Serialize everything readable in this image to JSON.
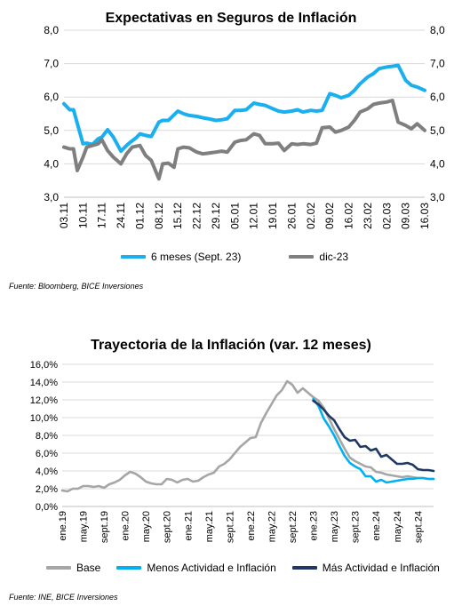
{
  "chart_data": [
    {
      "type": "line",
      "title": "Expectativas en Seguros de Inflación",
      "ylim": [
        3.0,
        8.0
      ],
      "yticks": [
        "3,0",
        "4,0",
        "5,0",
        "6,0",
        "7,0",
        "8,0"
      ],
      "xticks": [
        "03.11",
        "10.11",
        "17.11",
        "24.11",
        "01.12",
        "08.12",
        "15.12",
        "22.12",
        "29.12",
        "05.01",
        "12.01",
        "19.01",
        "26.01",
        "02.02",
        "09.02",
        "16.02",
        "23.02",
        "02.03",
        "09.03",
        "16.03"
      ],
      "secondary_y_axis": true,
      "grid": true,
      "legend_position": "bottom",
      "series": [
        {
          "name": "6 meses (Sept. 23)",
          "color": "#1ab0ef",
          "x": [
            0,
            0.3,
            0.5,
            1.0,
            1.2,
            1.5,
            1.8,
            2.0,
            2.3,
            2.6,
            3.0,
            3.3,
            3.5,
            3.8,
            4.0,
            4.3,
            4.6,
            5.0,
            5.2,
            5.5,
            6.0,
            6.3,
            6.6,
            7.0,
            7.3,
            7.6,
            8.0,
            8.3,
            8.6,
            9.0,
            9.3,
            9.6,
            10.0,
            10.3,
            10.6,
            11.0,
            11.3,
            11.6,
            12.0,
            12.3,
            12.6,
            13.0,
            13.3,
            13.6,
            14.0,
            14.3,
            14.6,
            15.0,
            15.3,
            15.6,
            16.0,
            16.3,
            16.6,
            17.0,
            17.3,
            17.6,
            18.0,
            18.3,
            18.6,
            19.0
          ],
          "y": [
            5.8,
            5.62,
            5.62,
            4.6,
            4.62,
            4.58,
            4.75,
            4.8,
            5.02,
            4.8,
            4.38,
            4.55,
            4.65,
            4.78,
            4.9,
            4.85,
            4.82,
            5.25,
            5.3,
            5.3,
            5.58,
            5.5,
            5.45,
            5.42,
            5.38,
            5.35,
            5.3,
            5.32,
            5.35,
            5.6,
            5.6,
            5.62,
            5.82,
            5.78,
            5.75,
            5.65,
            5.58,
            5.55,
            5.58,
            5.62,
            5.55,
            5.6,
            5.58,
            5.6,
            6.1,
            6.05,
            5.98,
            6.05,
            6.2,
            6.4,
            6.6,
            6.7,
            6.85,
            6.9,
            6.92,
            6.95,
            6.5,
            6.35,
            6.3,
            6.2
          ]
        },
        {
          "name": "dic-23",
          "color": "#7f7f7f",
          "x": [
            0,
            0.3,
            0.5,
            0.7,
            1.0,
            1.2,
            1.5,
            1.8,
            2.0,
            2.3,
            2.6,
            3.0,
            3.3,
            3.6,
            4.0,
            4.3,
            4.6,
            5.0,
            5.2,
            5.5,
            5.8,
            6.0,
            6.3,
            6.6,
            7.0,
            7.3,
            7.6,
            8.0,
            8.3,
            8.6,
            9.0,
            9.3,
            9.6,
            10.0,
            10.3,
            10.6,
            11.0,
            11.3,
            11.6,
            12.0,
            12.3,
            12.6,
            13.0,
            13.3,
            13.6,
            14.0,
            14.3,
            14.6,
            15.0,
            15.3,
            15.6,
            16.0,
            16.3,
            16.6,
            17.0,
            17.3,
            17.6,
            18.0,
            18.3,
            18.6,
            19.0
          ],
          "y": [
            4.5,
            4.45,
            4.45,
            3.8,
            4.2,
            4.5,
            4.55,
            4.6,
            4.72,
            4.4,
            4.2,
            4.0,
            4.3,
            4.5,
            4.55,
            4.25,
            4.1,
            3.55,
            4.0,
            4.02,
            3.9,
            4.45,
            4.5,
            4.48,
            4.35,
            4.3,
            4.32,
            4.35,
            4.38,
            4.35,
            4.65,
            4.7,
            4.72,
            4.9,
            4.85,
            4.6,
            4.6,
            4.62,
            4.4,
            4.6,
            4.58,
            4.6,
            4.58,
            4.62,
            5.08,
            5.1,
            4.95,
            5.0,
            5.1,
            5.3,
            5.55,
            5.65,
            5.78,
            5.82,
            5.85,
            5.9,
            5.25,
            5.15,
            5.05,
            5.2,
            5.0
          ]
        }
      ]
    },
    {
      "type": "line",
      "title": "Trayectoria de la Inflación (var. 12 meses)",
      "ylim": [
        0,
        16
      ],
      "yticks": [
        "0,0%",
        "2,0%",
        "4,0%",
        "6,0%",
        "8,0%",
        "10,0%",
        "12,0%",
        "14,0%",
        "16,0%"
      ],
      "xticks": [
        "ene.19",
        "may.19",
        "sept.19",
        "ene.20",
        "may.20",
        "sept.20",
        "ene.21",
        "may.21",
        "sept.21",
        "ene.22",
        "may.22",
        "sept.22",
        "ene.23",
        "may.23",
        "sept.23",
        "ene.24",
        "may.24",
        "sept.24"
      ],
      "grid": true,
      "legend_position": "bottom",
      "series": [
        {
          "name": "Base",
          "color": "#a6a6a6",
          "x": [
            0,
            1,
            2,
            3,
            4,
            5,
            6,
            7,
            8,
            9,
            10,
            11,
            12,
            13,
            14,
            15,
            16,
            17,
            18,
            19,
            20,
            21,
            22,
            23,
            24,
            25,
            26,
            27,
            28,
            29,
            30,
            31,
            32,
            33,
            34,
            35,
            36,
            37,
            38,
            39,
            40,
            41,
            42,
            43,
            44,
            45,
            46,
            47,
            48,
            49,
            50,
            51,
            52,
            53,
            54,
            55,
            56,
            57,
            58,
            59,
            60,
            61,
            62,
            63,
            64,
            65,
            66,
            67,
            68,
            69,
            70,
            71
          ],
          "y": [
            1.8,
            1.7,
            2.0,
            2.0,
            2.3,
            2.3,
            2.2,
            2.3,
            2.1,
            2.5,
            2.7,
            3.0,
            3.5,
            3.9,
            3.7,
            3.3,
            2.8,
            2.6,
            2.5,
            2.5,
            3.1,
            3.0,
            2.7,
            3.0,
            3.1,
            2.8,
            2.9,
            3.3,
            3.6,
            3.8,
            4.5,
            4.8,
            5.3,
            6.0,
            6.7,
            7.2,
            7.7,
            7.8,
            9.4,
            10.5,
            11.5,
            12.5,
            13.1,
            14.1,
            13.7,
            12.8,
            13.3,
            12.8,
            12.3,
            11.9,
            11.1,
            9.9,
            8.7,
            7.6,
            6.5,
            5.5,
            5.1,
            4.8,
            4.5,
            4.4,
            3.9,
            3.8,
            3.6,
            3.5,
            3.4,
            3.3,
            3.4,
            3.3,
            3.2,
            3.2,
            3.1,
            3.1
          ]
        },
        {
          "name": "Menos Actividad e Inflación",
          "color": "#00b0f0",
          "x": [
            48,
            49,
            50,
            51,
            52,
            53,
            54,
            55,
            56,
            57,
            58,
            59,
            60,
            61,
            62,
            63,
            64,
            65,
            66,
            67,
            68,
            69,
            70,
            71
          ],
          "y": [
            12.1,
            11.3,
            9.9,
            9.0,
            8.0,
            6.8,
            5.7,
            4.9,
            4.5,
            4.2,
            3.4,
            3.4,
            2.8,
            3.0,
            2.7,
            2.8,
            2.9,
            3.0,
            3.1,
            3.1,
            3.2,
            3.2,
            3.1,
            3.1
          ]
        },
        {
          "name": "Más Actividad e Inflación",
          "color": "#1f3864",
          "x": [
            48,
            49,
            50,
            51,
            52,
            53,
            54,
            55,
            56,
            57,
            58,
            59,
            60,
            61,
            62,
            63,
            64,
            65,
            66,
            67,
            68,
            69,
            70,
            71
          ],
          "y": [
            11.9,
            11.5,
            10.9,
            10.2,
            9.7,
            8.7,
            7.8,
            7.4,
            7.5,
            6.7,
            6.8,
            6.3,
            6.5,
            5.6,
            5.8,
            5.3,
            4.8,
            4.8,
            4.9,
            4.7,
            4.2,
            4.1,
            4.1,
            4.0
          ]
        }
      ]
    }
  ],
  "chart1": {
    "title": "Expectativas en Seguros de Inflación",
    "source": "Fuente: Bloomberg, BICE Inversiones",
    "legend": [
      {
        "label": "6 meses (Sept. 23)",
        "color": "#1ab0ef"
      },
      {
        "label": "dic-23",
        "color": "#7f7f7f"
      }
    ]
  },
  "chart2": {
    "title": "Trayectoria de la Inflación (var. 12 meses)",
    "source": "Fuente: INE, BICE Inversiones",
    "legend": [
      {
        "label": "Base",
        "color": "#a6a6a6"
      },
      {
        "label": "Menos Actividad e Inflación",
        "color": "#00b0f0"
      },
      {
        "label": "Más Actividad e Inflación",
        "color": "#1f3864"
      }
    ]
  }
}
